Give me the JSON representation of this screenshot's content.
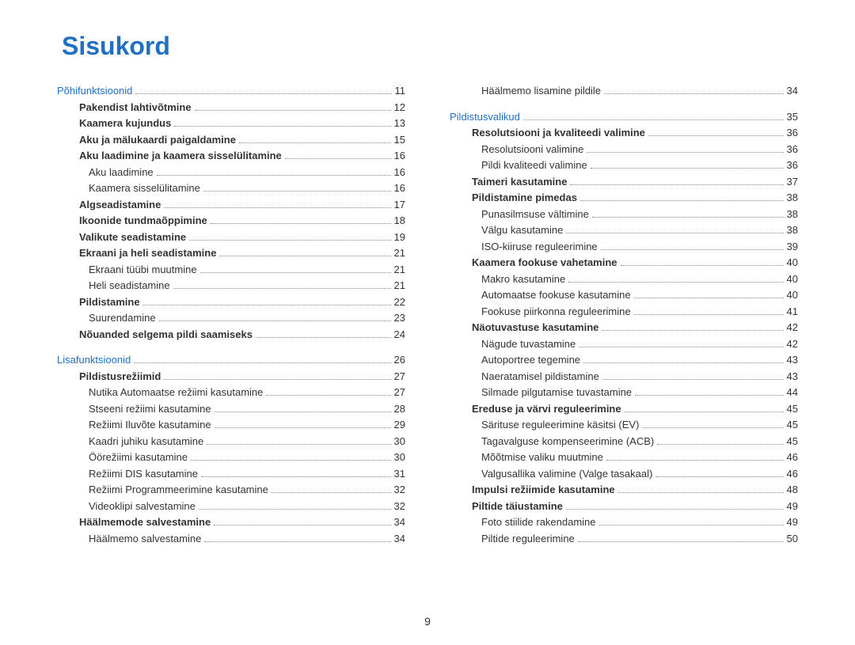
{
  "title": "Sisukord",
  "pageNumber": "9",
  "colors": {
    "accent": "#1f6fc4",
    "text": "#333333",
    "dots": "#888888",
    "background": "#ffffff"
  },
  "leftColumn": [
    {
      "label": "Põhifunktsioonid",
      "page": "11",
      "type": "section"
    },
    {
      "label": "Pakendist lahtivõtmine",
      "page": "12",
      "type": "bold",
      "indent": 1
    },
    {
      "label": "Kaamera kujundus",
      "page": "13",
      "type": "bold",
      "indent": 1
    },
    {
      "label": "Aku ja mälukaardi paigaldamine",
      "page": "15",
      "type": "bold",
      "indent": 1
    },
    {
      "label": "Aku laadimine ja kaamera sisselülitamine",
      "page": "16",
      "type": "bold",
      "indent": 1
    },
    {
      "label": "Aku laadimine",
      "page": "16",
      "type": "plain",
      "indent": 2
    },
    {
      "label": "Kaamera sisselülitamine",
      "page": "16",
      "type": "plain",
      "indent": 2
    },
    {
      "label": "Algseadistamine",
      "page": "17",
      "type": "bold",
      "indent": 1
    },
    {
      "label": "Ikoonide tundmaõppimine",
      "page": "18",
      "type": "bold",
      "indent": 1
    },
    {
      "label": "Valikute seadistamine",
      "page": "19",
      "type": "bold",
      "indent": 1
    },
    {
      "label": "Ekraani ja heli seadistamine",
      "page": "21",
      "type": "bold",
      "indent": 1
    },
    {
      "label": "Ekraani tüübi muutmine",
      "page": "21",
      "type": "plain",
      "indent": 2
    },
    {
      "label": "Heli seadistamine",
      "page": "21",
      "type": "plain",
      "indent": 2
    },
    {
      "label": "Pildistamine",
      "page": "22",
      "type": "bold",
      "indent": 1
    },
    {
      "label": "Suurendamine",
      "page": "23",
      "type": "plain",
      "indent": 2
    },
    {
      "label": "Nõuanded selgema pildi saamiseks",
      "page": "24",
      "type": "bold",
      "indent": 1
    },
    {
      "type": "spacer"
    },
    {
      "label": "Lisafunktsioonid",
      "page": "26",
      "type": "section"
    },
    {
      "label": "Pildistusrežiimid",
      "page": "27",
      "type": "bold",
      "indent": 1
    },
    {
      "label": "Nutika Automaatse režiimi kasutamine",
      "page": "27",
      "type": "plain",
      "indent": 2
    },
    {
      "label": "Stseeni režiimi kasutamine",
      "page": "28",
      "type": "plain",
      "indent": 2
    },
    {
      "label": "Režiimi Iluvõte kasutamine",
      "page": "29",
      "type": "plain",
      "indent": 2
    },
    {
      "label": "Kaadri juhiku kasutamine",
      "page": "30",
      "type": "plain",
      "indent": 2
    },
    {
      "label": "Öörežiimi kasutamine",
      "page": "30",
      "type": "plain",
      "indent": 2
    },
    {
      "label": "Režiimi DIS kasutamine",
      "page": "31",
      "type": "plain",
      "indent": 2
    },
    {
      "label": "Režiimi Programmeerimine kasutamine",
      "page": "32",
      "type": "plain",
      "indent": 2
    },
    {
      "label": "Videoklipi salvestamine",
      "page": "32",
      "type": "plain",
      "indent": 2
    },
    {
      "label": "Häälmemode salvestamine",
      "page": "34",
      "type": "bold",
      "indent": 1
    },
    {
      "label": "Häälmemo salvestamine",
      "page": "34",
      "type": "plain",
      "indent": 2
    }
  ],
  "rightColumn": [
    {
      "label": "Häälmemo lisamine pildile",
      "page": "34",
      "type": "plain",
      "indent": 2
    },
    {
      "type": "spacer"
    },
    {
      "label": "Pildistusvalikud",
      "page": "35",
      "type": "section"
    },
    {
      "label": "Resolutsiooni ja kvaliteedi valimine",
      "page": "36",
      "type": "bold",
      "indent": 1
    },
    {
      "label": "Resolutsiooni valimine",
      "page": "36",
      "type": "plain",
      "indent": 2
    },
    {
      "label": "Pildi kvaliteedi valimine",
      "page": "36",
      "type": "plain",
      "indent": 2
    },
    {
      "label": "Taimeri kasutamine",
      "page": "37",
      "type": "bold",
      "indent": 1
    },
    {
      "label": "Pildistamine pimedas",
      "page": "38",
      "type": "bold",
      "indent": 1
    },
    {
      "label": "Punasilmsuse vältimine",
      "page": "38",
      "type": "plain",
      "indent": 2
    },
    {
      "label": "Välgu kasutamine",
      "page": "38",
      "type": "plain",
      "indent": 2
    },
    {
      "label": "ISO-kiiruse reguleerimine",
      "page": "39",
      "type": "plain",
      "indent": 2
    },
    {
      "label": "Kaamera fookuse vahetamine",
      "page": "40",
      "type": "bold",
      "indent": 1
    },
    {
      "label": "Makro kasutamine",
      "page": "40",
      "type": "plain",
      "indent": 2
    },
    {
      "label": "Automaatse fookuse kasutamine",
      "page": "40",
      "type": "plain",
      "indent": 2
    },
    {
      "label": "Fookuse piirkonna reguleerimine",
      "page": "41",
      "type": "plain",
      "indent": 2
    },
    {
      "label": "Näotuvastuse kasutamine",
      "page": "42",
      "type": "bold",
      "indent": 1
    },
    {
      "label": "Nägude tuvastamine",
      "page": "42",
      "type": "plain",
      "indent": 2
    },
    {
      "label": "Autoportree tegemine",
      "page": "43",
      "type": "plain",
      "indent": 2
    },
    {
      "label": "Naeratamisel pildistamine",
      "page": "43",
      "type": "plain",
      "indent": 2
    },
    {
      "label": "Silmade pilgutamise tuvastamine",
      "page": "44",
      "type": "plain",
      "indent": 2
    },
    {
      "label": "Ereduse ja värvi reguleerimine",
      "page": "45",
      "type": "bold",
      "indent": 1
    },
    {
      "label": "Särituse reguleerimine käsitsi (EV)",
      "page": "45",
      "type": "plain",
      "indent": 2
    },
    {
      "label": "Tagavalguse kompenseerimine (ACB)",
      "page": "45",
      "type": "plain",
      "indent": 2
    },
    {
      "label": "Mõõtmise valiku muutmine",
      "page": "46",
      "type": "plain",
      "indent": 2
    },
    {
      "label": "Valgusallika valimine (Valge tasakaal)",
      "page": "46",
      "type": "plain",
      "indent": 2
    },
    {
      "label": "Impulsi režiimide kasutamine",
      "page": "48",
      "type": "bold",
      "indent": 1
    },
    {
      "label": "Piltide täiustamine",
      "page": "49",
      "type": "bold",
      "indent": 1
    },
    {
      "label": "Foto stiilide rakendamine",
      "page": "49",
      "type": "plain",
      "indent": 2
    },
    {
      "label": "Piltide reguleerimine",
      "page": "50",
      "type": "plain",
      "indent": 2
    }
  ]
}
